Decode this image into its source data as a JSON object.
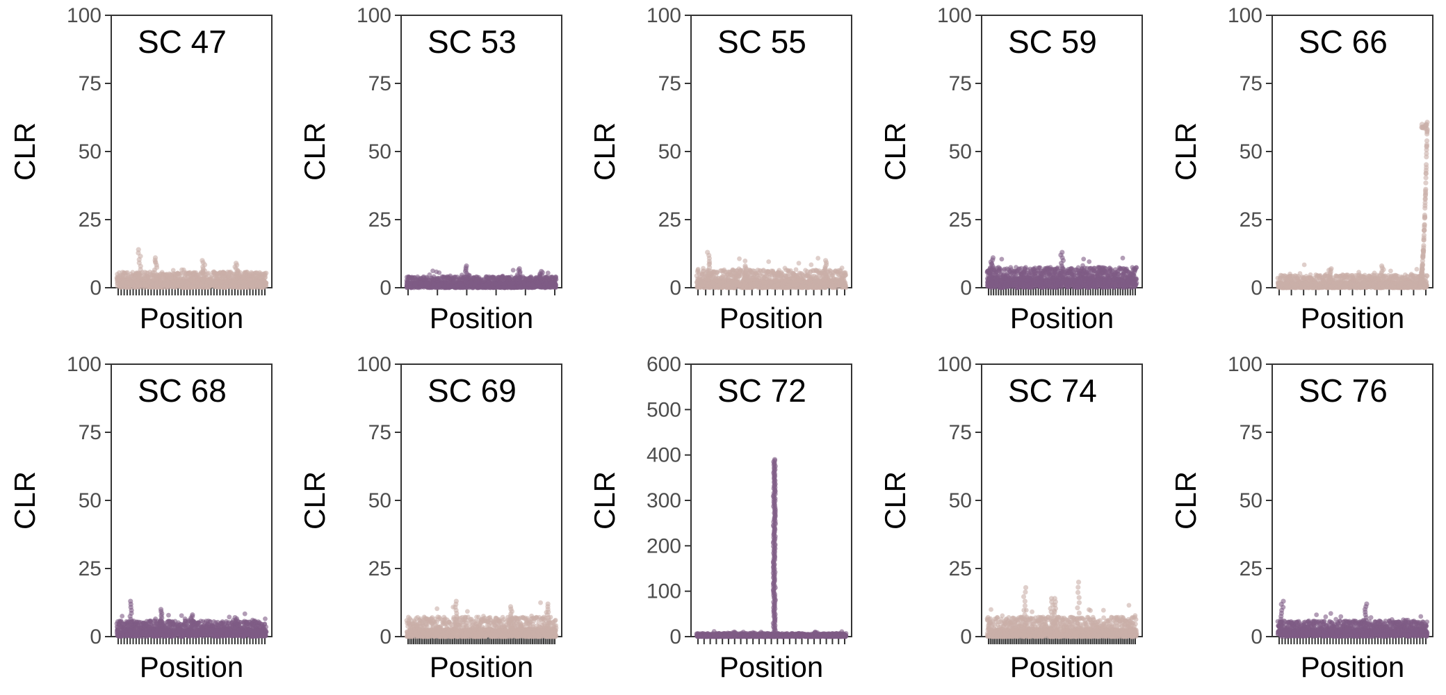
{
  "colors": {
    "light": "#C9AFA9",
    "dark": "#7F5B86",
    "axis": "#333333",
    "tick_label": "#4d4d4d"
  },
  "chart_data": [
    {
      "type": "scatter",
      "title": "SC 47",
      "xlabel": "Position",
      "ylabel": "CLR",
      "ylim": [
        0,
        100
      ],
      "yticks": [
        0,
        25,
        50,
        75,
        100
      ],
      "x_tick_count": 50,
      "color": "light",
      "baseline": 3,
      "noise": 4,
      "peaks": [
        {
          "x": 0.15,
          "value": 14
        },
        {
          "x": 0.26,
          "value": 11
        },
        {
          "x": 0.58,
          "value": 10
        },
        {
          "x": 0.8,
          "value": 9
        }
      ]
    },
    {
      "type": "scatter",
      "title": "SC 53",
      "xlabel": "Position",
      "ylabel": "CLR",
      "ylim": [
        0,
        100
      ],
      "yticks": [
        0,
        25,
        50,
        75,
        100
      ],
      "x_tick_count": 6,
      "color": "dark",
      "baseline": 2,
      "noise": 3,
      "peaks": [
        {
          "x": 0.4,
          "value": 8
        },
        {
          "x": 0.75,
          "value": 7
        },
        {
          "x": 0.9,
          "value": 6
        }
      ]
    },
    {
      "type": "scatter",
      "title": "SC 55",
      "xlabel": "Position",
      "ylabel": "CLR",
      "ylim": [
        0,
        100
      ],
      "yticks": [
        0,
        25,
        50,
        75,
        100
      ],
      "x_tick_count": 20,
      "color": "light",
      "baseline": 3,
      "noise": 5,
      "peaks": [
        {
          "x": 0.08,
          "value": 13
        },
        {
          "x": 0.33,
          "value": 8
        },
        {
          "x": 0.86,
          "value": 10
        }
      ]
    },
    {
      "type": "scatter",
      "title": "SC 59",
      "xlabel": "Position",
      "ylabel": "CLR",
      "ylim": [
        0,
        100
      ],
      "yticks": [
        0,
        25,
        50,
        75,
        100
      ],
      "x_tick_count": 60,
      "color": "dark",
      "baseline": 4,
      "noise": 5,
      "peaks": [
        {
          "x": 0.03,
          "value": 11
        },
        {
          "x": 0.5,
          "value": 13
        }
      ]
    },
    {
      "type": "scatter",
      "title": "SC 66",
      "xlabel": "Position",
      "ylabel": "CLR",
      "ylim": [
        0,
        100
      ],
      "yticks": [
        0,
        25,
        50,
        75,
        100
      ],
      "x_tick_count": 13,
      "color": "light",
      "baseline": 2,
      "noise": 4,
      "peaks": [
        {
          "x": 0.35,
          "value": 7
        },
        {
          "x": 0.7,
          "value": 8
        }
      ],
      "ramp": {
        "x0": 0.95,
        "x1": 1.0,
        "value": 60
      }
    },
    {
      "type": "scatter",
      "title": "SC 68",
      "xlabel": "Position",
      "ylabel": "CLR",
      "ylim": [
        0,
        100
      ],
      "yticks": [
        0,
        25,
        50,
        75,
        100
      ],
      "x_tick_count": 50,
      "color": "dark",
      "baseline": 3,
      "noise": 4,
      "peaks": [
        {
          "x": 0.09,
          "value": 13
        },
        {
          "x": 0.3,
          "value": 10
        },
        {
          "x": 0.5,
          "value": 8
        },
        {
          "x": 0.8,
          "value": 7
        }
      ]
    },
    {
      "type": "scatter",
      "title": "SC 69",
      "xlabel": "Position",
      "ylabel": "CLR",
      "ylim": [
        0,
        100
      ],
      "yticks": [
        0,
        25,
        50,
        75,
        100
      ],
      "x_tick_count": 80,
      "color": "light",
      "baseline": 3,
      "noise": 6,
      "peaks": [
        {
          "x": 0.33,
          "value": 13
        },
        {
          "x": 0.7,
          "value": 11
        },
        {
          "x": 0.95,
          "value": 12
        }
      ]
    },
    {
      "type": "scatter",
      "title": "SC 72",
      "xlabel": "Position",
      "ylabel": "CLR",
      "ylim": [
        0,
        600
      ],
      "yticks": [
        0,
        100,
        200,
        300,
        400,
        500,
        600
      ],
      "x_tick_count": 25,
      "color": "dark",
      "baseline": 3,
      "noise": 6,
      "peaks": [
        {
          "x": 0.25,
          "value": 9
        },
        {
          "x": 0.8,
          "value": 10
        }
      ],
      "spike": {
        "x": 0.52,
        "value": 390
      }
    },
    {
      "type": "scatter",
      "title": "SC 74",
      "xlabel": "Position",
      "ylabel": "CLR",
      "ylim": [
        0,
        100
      ],
      "yticks": [
        0,
        25,
        50,
        75,
        100
      ],
      "x_tick_count": 80,
      "color": "light",
      "baseline": 3,
      "noise": 6,
      "peaks": [
        {
          "x": 0.25,
          "value": 18
        },
        {
          "x": 0.43,
          "value": 14
        },
        {
          "x": 0.45,
          "value": 14
        },
        {
          "x": 0.61,
          "value": 20
        }
      ]
    },
    {
      "type": "scatter",
      "title": "SC 76",
      "xlabel": "Position",
      "ylabel": "CLR",
      "ylim": [
        0,
        100
      ],
      "yticks": [
        0,
        25,
        50,
        75,
        100
      ],
      "x_tick_count": 50,
      "color": "dark",
      "baseline": 3,
      "noise": 4,
      "peaks": [
        {
          "x": 0.03,
          "value": 13
        },
        {
          "x": 0.59,
          "value": 12
        },
        {
          "x": 0.85,
          "value": 6
        }
      ]
    }
  ]
}
